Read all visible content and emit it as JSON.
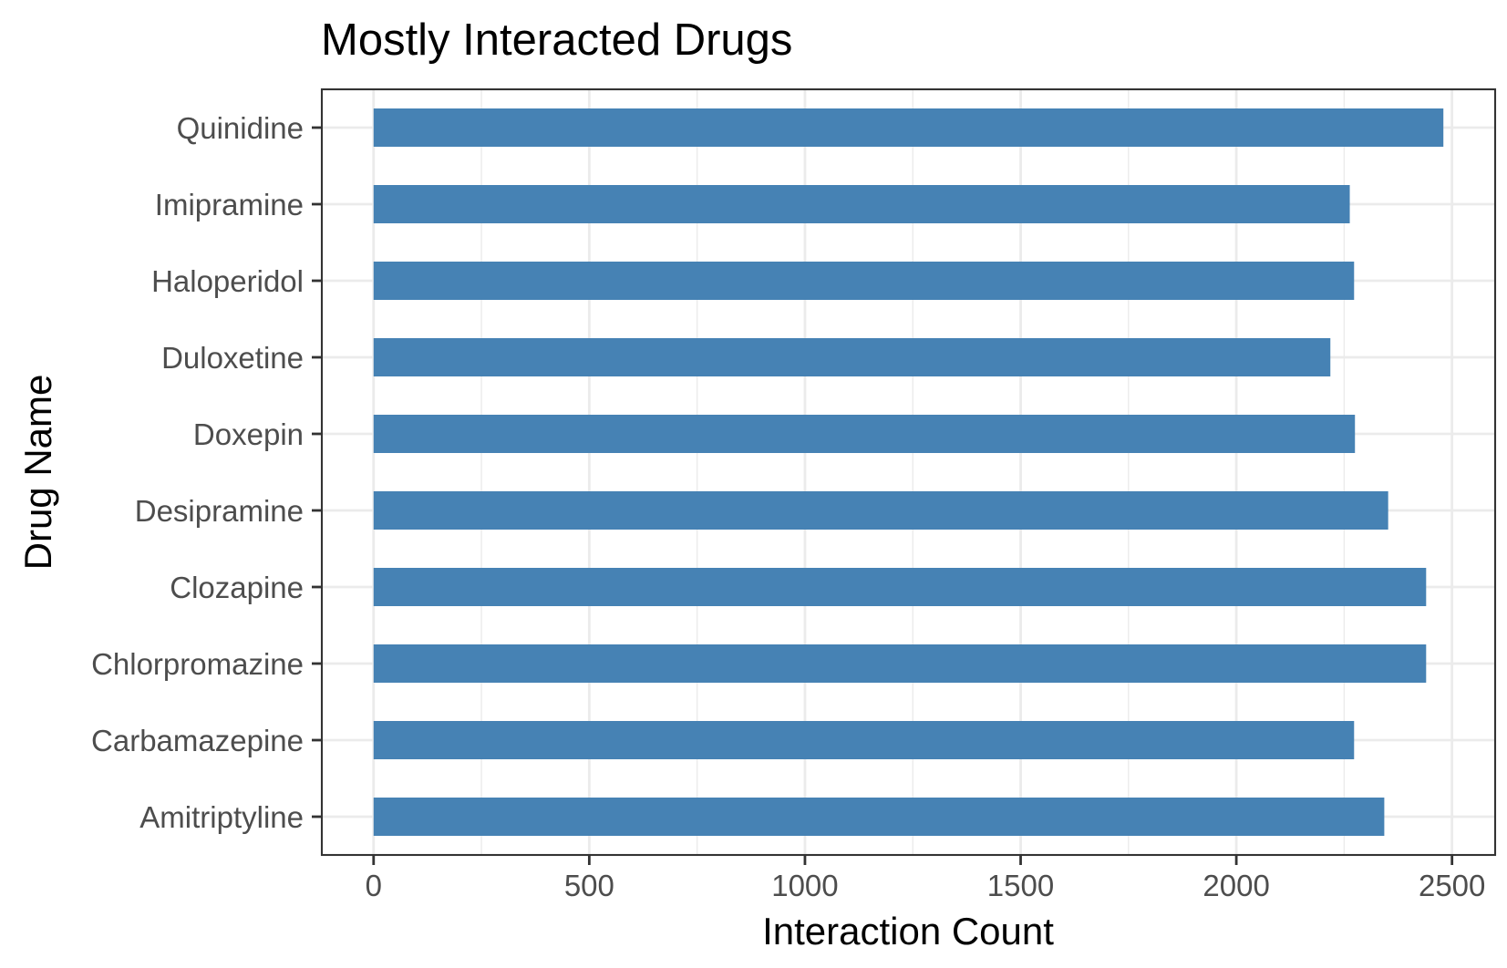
{
  "chart_data": {
    "type": "bar",
    "orientation": "horizontal",
    "title": "Mostly Interacted Drugs",
    "xlabel": "Interaction Count",
    "ylabel": "Drug Name",
    "categories": [
      "Quinidine",
      "Imipramine",
      "Haloperidol",
      "Duloxetine",
      "Doxepin",
      "Desipramine",
      "Clozapine",
      "Chlorpromazine",
      "Carbamazepine",
      "Amitriptyline"
    ],
    "values": [
      2480,
      2263,
      2273,
      2218,
      2275,
      2352,
      2440,
      2440,
      2273,
      2343
    ],
    "xlim": [
      -120,
      2600
    ],
    "xticks": [
      0,
      500,
      1000,
      1500,
      2000,
      2500
    ],
    "xtick_labels": [
      "0",
      "500",
      "1000",
      "1500",
      "2000",
      "2500"
    ],
    "bar_color": "#4682b4",
    "grid": true,
    "legend": "none"
  }
}
